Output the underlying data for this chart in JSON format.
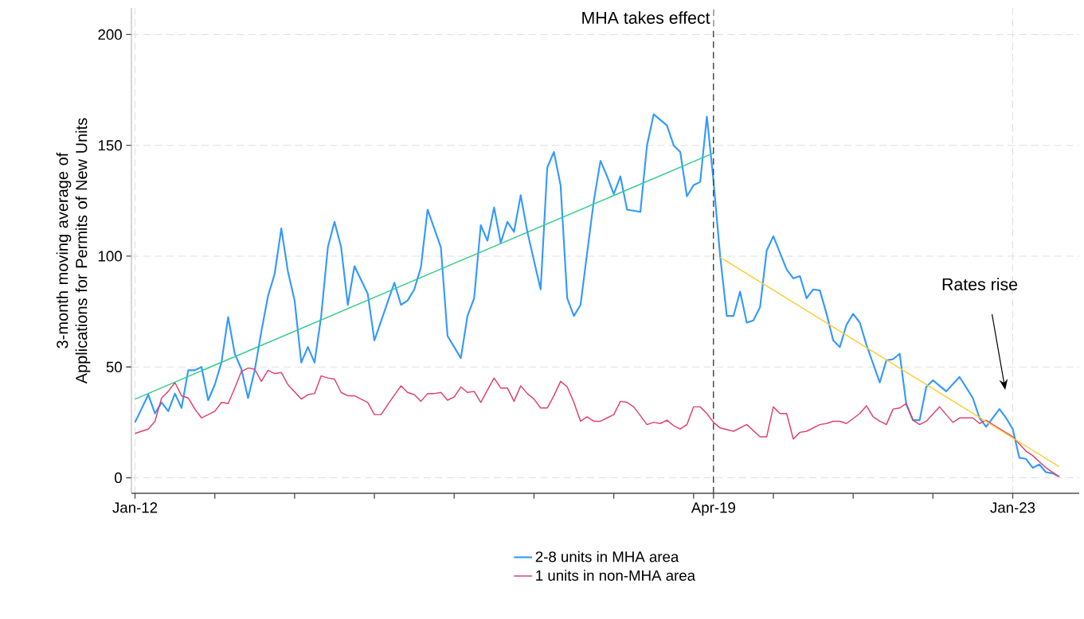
{
  "chart_data": {
    "type": "line",
    "ylabel": "3-month moving average of Applications for Permits of New Units",
    "xlim": [
      "2011-12-15",
      "2023-11"
    ],
    "ylim": [
      -7,
      212
    ],
    "xticks": [
      {
        "value": "2012-01",
        "label": "Jan-12"
      },
      {
        "value": "2013-01",
        "label": null
      },
      {
        "value": "2014-01",
        "label": null
      },
      {
        "value": "2015-01",
        "label": null
      },
      {
        "value": "2016-01",
        "label": null
      },
      {
        "value": "2017-01",
        "label": null
      },
      {
        "value": "2018-01",
        "label": null
      },
      {
        "value": "2019-01",
        "label": null
      },
      {
        "value": "2019-04",
        "label": "Apr-19"
      },
      {
        "value": "2020-01",
        "label": null
      },
      {
        "value": "2021-01",
        "label": null
      },
      {
        "value": "2022-01",
        "label": null
      },
      {
        "value": "2023-01",
        "label": "Jan-23"
      }
    ],
    "yticks": [
      0,
      50,
      100,
      150,
      200
    ],
    "grid": true,
    "legend": "bottom",
    "series": [
      {
        "name": "2-8 units in MHA area",
        "color": "#3399ff",
        "x": [
          "2012-01",
          "2012-03",
          "2012-04",
          "2012-05",
          "2012-06",
          "2012-07",
          "2012-08",
          "2012-09",
          "2012-10",
          "2012-11",
          "2012-12",
          "2013-01",
          "2013-02",
          "2013-03",
          "2013-04",
          "2013-05",
          "2013-06",
          "2013-07",
          "2013-08",
          "2013-09",
          "2013-10",
          "2013-11",
          "2013-12",
          "2014-01",
          "2014-02",
          "2014-03",
          "2014-04",
          "2014-05",
          "2014-06",
          "2014-07",
          "2014-08",
          "2014-09",
          "2014-10",
          "2014-12",
          "2015-01",
          "2015-04",
          "2015-05",
          "2015-06",
          "2015-07",
          "2015-08",
          "2015-09",
          "2015-11",
          "2015-12",
          "2016-02",
          "2016-03",
          "2016-04",
          "2016-05",
          "2016-06",
          "2016-07",
          "2016-08",
          "2016-09",
          "2016-10",
          "2016-11",
          "2016-12",
          "2017-02",
          "2017-03",
          "2017-04",
          "2017-05",
          "2017-06",
          "2017-07",
          "2017-08",
          "2017-10",
          "2017-11",
          "2017-12",
          "2018-01",
          "2018-02",
          "2018-03",
          "2018-05",
          "2018-06",
          "2018-07",
          "2018-09",
          "2018-10",
          "2018-11",
          "2018-12",
          "2019-01",
          "2019-02",
          "2019-03",
          "2019-04",
          "2019-05",
          "2019-06",
          "2019-07",
          "2019-08",
          "2019-09",
          "2019-10",
          "2019-11",
          "2019-12",
          "2020-01",
          "2020-03",
          "2020-04",
          "2020-05",
          "2020-06",
          "2020-07",
          "2020-08",
          "2020-09",
          "2020-10",
          "2020-11",
          "2020-12",
          "2021-01",
          "2021-02",
          "2021-03",
          "2021-05",
          "2021-06",
          "2021-07",
          "2021-08",
          "2021-09",
          "2021-10",
          "2021-11",
          "2021-12",
          "2022-01",
          "2022-03",
          "2022-05",
          "2022-07",
          "2022-08",
          "2022-09",
          "2022-11",
          "2022-12",
          "2023-01",
          "2023-02",
          "2023-03",
          "2023-04",
          "2023-05",
          "2023-06",
          "2023-07",
          "2023-08"
        ],
        "values": [
          25,
          37.5,
          29,
          34,
          30,
          38,
          31.5,
          48.5,
          48.5,
          50,
          35,
          42,
          52,
          72.5,
          56,
          49,
          36,
          48.5,
          66,
          82,
          92,
          112.5,
          93,
          80,
          52,
          59,
          52,
          73,
          104,
          115.5,
          104,
          78,
          95.5,
          83,
          62,
          88,
          78,
          80,
          85,
          95,
          121,
          104,
          64,
          54,
          73,
          81,
          114,
          107,
          122,
          106,
          115.5,
          111,
          127.5,
          111,
          85,
          140,
          147,
          132,
          81,
          73,
          78,
          125,
          143,
          136,
          128,
          136,
          121,
          120,
          150,
          164,
          159,
          150,
          147,
          127,
          132,
          133.5,
          163,
          134,
          100,
          73,
          73,
          84,
          70,
          71,
          77,
          102.5,
          109,
          94,
          90,
          91,
          81,
          85,
          84.5,
          74,
          62,
          59,
          69,
          74,
          70,
          60,
          43,
          53,
          53.5,
          56,
          33,
          26,
          26,
          41,
          44,
          39,
          45.5,
          36,
          27,
          23,
          31,
          27,
          22,
          9,
          8.5,
          4.5,
          6,
          2.5,
          2,
          0.5
        ]
      },
      {
        "name": "1 units in non-MHA area",
        "color": "#e0406a",
        "x": [
          "2012-01",
          "2012-02",
          "2012-03",
          "2012-04",
          "2012-05",
          "2012-06",
          "2012-07",
          "2012-08",
          "2012-09",
          "2012-10",
          "2012-11",
          "2012-12",
          "2013-01",
          "2013-02",
          "2013-03",
          "2013-04",
          "2013-05",
          "2013-06",
          "2013-07",
          "2013-08",
          "2013-09",
          "2013-10",
          "2013-11",
          "2013-12",
          "2014-02",
          "2014-03",
          "2014-04",
          "2014-05",
          "2014-06",
          "2014-07",
          "2014-08",
          "2014-09",
          "2014-10",
          "2014-12",
          "2015-01",
          "2015-02",
          "2015-03",
          "2015-05",
          "2015-06",
          "2015-07",
          "2015-08",
          "2015-09",
          "2015-10",
          "2015-11",
          "2015-12",
          "2016-01",
          "2016-02",
          "2016-03",
          "2016-04",
          "2016-05",
          "2016-06",
          "2016-07",
          "2016-08",
          "2016-09",
          "2016-10",
          "2016-11",
          "2016-12",
          "2017-01",
          "2017-02",
          "2017-03",
          "2017-04",
          "2017-05",
          "2017-06",
          "2017-07",
          "2017-08",
          "2017-09",
          "2017-10",
          "2017-11",
          "2017-12",
          "2018-01",
          "2018-02",
          "2018-03",
          "2018-04",
          "2018-05",
          "2018-06",
          "2018-07",
          "2018-08",
          "2018-09",
          "2018-10",
          "2018-11",
          "2018-12",
          "2019-01",
          "2019-02",
          "2019-03",
          "2019-04",
          "2019-05",
          "2019-07",
          "2019-09",
          "2019-11",
          "2019-12",
          "2020-01",
          "2020-02",
          "2020-03",
          "2020-04",
          "2020-05",
          "2020-06",
          "2020-08",
          "2020-09",
          "2020-10",
          "2020-11",
          "2020-12",
          "2021-02",
          "2021-03",
          "2021-04",
          "2021-05",
          "2021-06",
          "2021-07",
          "2021-08",
          "2021-09",
          "2021-10",
          "2021-11",
          "2021-12",
          "2022-02",
          "2022-04",
          "2022-05",
          "2022-07",
          "2022-08",
          "2022-09",
          "2022-10",
          "2023-01",
          "2023-03",
          "2023-04",
          "2023-06",
          "2023-07",
          "2023-08"
        ],
        "values": [
          20,
          21,
          22,
          25.5,
          36,
          39,
          43,
          37,
          36,
          31,
          27,
          28.5,
          30,
          34,
          33.5,
          40.5,
          48,
          49.5,
          49,
          43.5,
          48.5,
          47,
          47.5,
          42,
          35.5,
          37.5,
          38,
          46,
          45,
          44.5,
          38.5,
          37,
          37,
          34,
          28.5,
          28.5,
          33,
          41.5,
          38.5,
          37.5,
          34.5,
          38,
          38,
          38.5,
          35,
          36.5,
          41,
          38.5,
          39,
          34,
          39.5,
          45,
          40.5,
          40.5,
          34.5,
          41.5,
          38,
          35.5,
          31.5,
          31.5,
          37,
          43.5,
          41,
          34,
          25.5,
          27.5,
          25.5,
          25.5,
          27,
          28.5,
          34.5,
          34,
          32,
          28,
          24,
          25,
          24.5,
          26,
          23.5,
          22,
          24,
          32,
          32,
          29,
          25,
          22.5,
          21,
          24,
          18.5,
          18.5,
          32,
          29,
          29,
          17.5,
          20.5,
          21,
          24,
          24.5,
          25.5,
          25.5,
          24.5,
          29,
          32.5,
          27.5,
          25.5,
          24,
          31,
          31.5,
          33.5,
          26,
          24,
          25.5,
          32,
          25,
          27,
          27,
          24.5,
          26,
          24,
          18.5,
          12,
          10,
          4.5,
          2.5,
          0.5
        ]
      },
      {
        "color": "#33cc88",
        "x": [
          "2012-01",
          "2019-04"
        ],
        "values": [
          35.5,
          146.5
        ]
      },
      {
        "color": "#ffcc33",
        "x": [
          "2019-05",
          "2023-08"
        ],
        "values": [
          99.5,
          5
        ]
      }
    ],
    "ref_lines": [
      {
        "axis": "x",
        "value": "2019-04",
        "label": "MHA takes effect",
        "color": "#404040",
        "line_style": "dashed"
      }
    ],
    "annotations": [
      "Rates rise"
    ]
  }
}
